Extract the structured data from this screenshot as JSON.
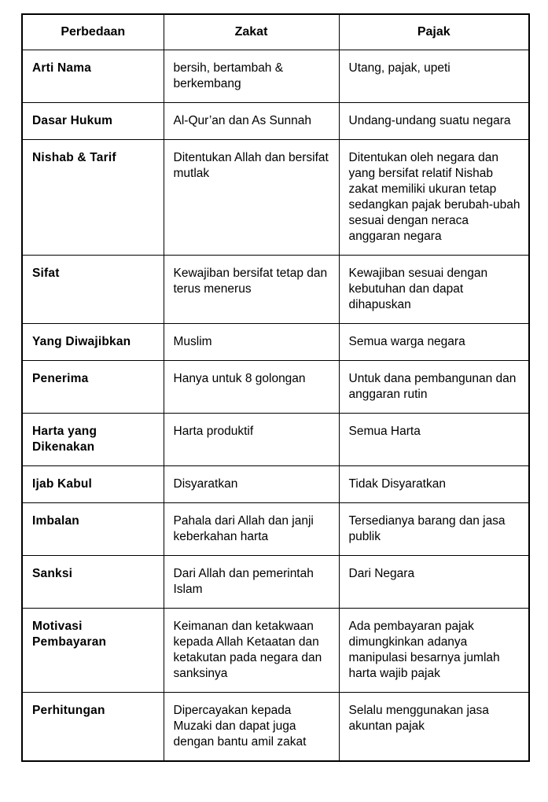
{
  "table": {
    "headers": [
      "Perbedaan",
      "Zakat",
      "Pajak"
    ],
    "rows": [
      {
        "label": "Arti Nama",
        "zakat": "bersih, bertambah & berkembang",
        "pajak": "Utang, pajak, upeti"
      },
      {
        "label": "Dasar Hukum",
        "zakat": "Al-Qur’an dan As Sunnah",
        "pajak": "Undang-undang suatu negara"
      },
      {
        "label": "Nishab & Tarif",
        "zakat": "Ditentukan Allah dan bersifat mutlak",
        "pajak": "Ditentukan oleh negara dan yang bersifat relatif Nishab zakat memiliki ukuran tetap sedangkan pajak berubah-ubah sesuai dengan neraca anggaran negara"
      },
      {
        "label": "Sifat",
        "zakat": "Kewajiban bersifat tetap dan terus menerus",
        "pajak": "Kewajiban sesuai dengan kebutuhan dan dapat dihapuskan"
      },
      {
        "label": "Yang Diwajibkan",
        "zakat": "Muslim",
        "pajak": "Semua warga negara"
      },
      {
        "label": "Penerima",
        "zakat": "Hanya untuk 8 golongan",
        "pajak": "Untuk dana pembangunan dan anggaran rutin"
      },
      {
        "label": "Harta yang Dikenakan",
        "zakat": "Harta produktif",
        "pajak": "Semua Harta"
      },
      {
        "label": "Ijab Kabul",
        "zakat": "Disyaratkan",
        "pajak": "Tidak Disyaratkan"
      },
      {
        "label": "Imbalan",
        "zakat": "Pahala dari Allah dan janji keberkahan harta",
        "pajak": "Tersedianya barang dan jasa publik"
      },
      {
        "label": "Sanksi",
        "zakat": "Dari Allah dan pemerintah Islam",
        "pajak": "Dari Negara"
      },
      {
        "label": "Motivasi Pembayaran",
        "zakat": "Keimanan dan ketakwaan kepada Allah Ketaatan dan ketakutan pada negara dan sanksinya",
        "pajak": "Ada pembayaran pajak dimungkinkan adanya manipulasi besarnya jumlah harta wajib pajak"
      },
      {
        "label": "Perhitungan",
        "zakat": "Dipercayakan kepada Muzaki dan dapat juga dengan bantu amil zakat",
        "pajak": "Selalu menggunakan jasa akuntan pajak"
      }
    ]
  }
}
